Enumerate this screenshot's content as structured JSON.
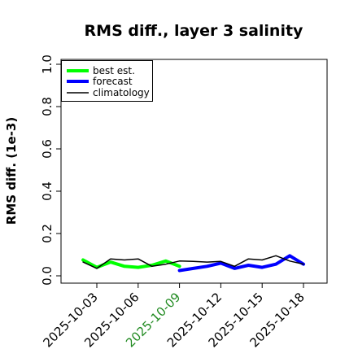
{
  "chart_data": {
    "type": "line",
    "title": "RMS diff., layer 3 salinity",
    "ylabel": "RMS diff. (1e-3)",
    "xlabel": "",
    "ylim": [
      0.0,
      1.0
    ],
    "yticks": [
      "0.0",
      "0.2",
      "0.4",
      "0.6",
      "0.8",
      "1.0"
    ],
    "xticks": [
      "2025-10-03",
      "2025-10-06",
      "2025-10-09",
      "2025-10-12",
      "2025-10-15",
      "2025-10-18"
    ],
    "highlight_tick": "2025-10-09",
    "highlight_color": "#228B22",
    "legend_position": "top-left",
    "grid": false,
    "series": [
      {
        "name": "best est.",
        "color": "#00ff00",
        "x": [
          "2025-10-02",
          "2025-10-03",
          "2025-10-04",
          "2025-10-05",
          "2025-10-06",
          "2025-10-07",
          "2025-10-08",
          "2025-10-09"
        ],
        "values": [
          0.075,
          0.04,
          0.065,
          0.045,
          0.04,
          0.05,
          0.07,
          0.045
        ]
      },
      {
        "name": "forecast",
        "color": "#0000ff",
        "x": [
          "2025-10-09",
          "2025-10-10",
          "2025-10-11",
          "2025-10-12",
          "2025-10-13",
          "2025-10-14",
          "2025-10-15",
          "2025-10-16",
          "2025-10-17",
          "2025-10-18"
        ],
        "values": [
          0.025,
          0.035,
          0.045,
          0.06,
          0.035,
          0.05,
          0.04,
          0.055,
          0.095,
          0.055
        ]
      },
      {
        "name": "climatology",
        "color": "#000000",
        "x": [
          "2025-10-02",
          "2025-10-03",
          "2025-10-04",
          "2025-10-05",
          "2025-10-06",
          "2025-10-07",
          "2025-10-08",
          "2025-10-09",
          "2025-10-10",
          "2025-10-11",
          "2025-10-12",
          "2025-10-13",
          "2025-10-14",
          "2025-10-15",
          "2025-10-16",
          "2025-10-17",
          "2025-10-18"
        ],
        "values": [
          0.065,
          0.035,
          0.08,
          0.075,
          0.08,
          0.045,
          0.055,
          0.07,
          0.068,
          0.065,
          0.068,
          0.045,
          0.08,
          0.075,
          0.095,
          0.07,
          0.055
        ]
      }
    ]
  }
}
